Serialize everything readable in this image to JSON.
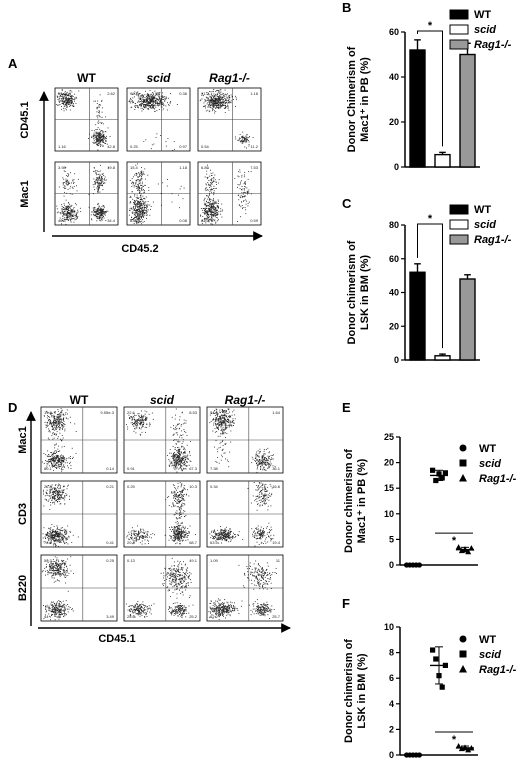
{
  "panels": {
    "A": {
      "letter": "A",
      "columns": [
        {
          "label": "WT",
          "italic": false
        },
        {
          "label": "scid",
          "italic": true
        },
        {
          "label": "Rag1-/-",
          "italic": true
        }
      ],
      "row_labels": [
        "CD45.1",
        "Mac1"
      ],
      "x_label": "CD45.2",
      "quadrants": [
        [
          [
            "63.6",
            "2.62",
            "1.16",
            "42.8"
          ],
          [
            "99.4",
            "0.36",
            "0.25",
            "0.97"
          ],
          [
            "91.2",
            "1.18",
            "0.54",
            "11.2"
          ]
        ],
        [
          [
            "3.98",
            "19.8",
            "40.5",
            "34.4"
          ],
          [
            "15.4",
            "1.18",
            "83.4",
            "0.08"
          ],
          [
            "6.89",
            "7.53",
            "82.6",
            "0.59"
          ]
        ]
      ]
    },
    "D": {
      "letter": "D",
      "columns": [
        {
          "label": "WT",
          "italic": false
        },
        {
          "label": "scid",
          "italic": true
        },
        {
          "label": "Rag1-/-",
          "italic": true
        }
      ],
      "row_labels": [
        "Mac1",
        "CD3",
        "B220"
      ],
      "x_label": "CD45.1",
      "quadrants": [
        [
          [
            "19.8",
            "9.55e-3",
            "80.1",
            "0.14"
          ],
          [
            "22.6",
            "8.53",
            "0.91",
            "67.3"
          ],
          [
            "54.9",
            "1.64",
            "7.38",
            "36.1"
          ]
        ],
        [
          [
            "22.8",
            "0.21",
            "76.5",
            "0.41"
          ],
          [
            "0.25",
            "10.3",
            "20.8",
            "68.7"
          ],
          [
            "0.34",
            "16.6",
            "63.5",
            "19.4"
          ]
        ],
        [
          [
            "50.3",
            "0.25",
            "44",
            "3.49"
          ],
          [
            "0.13",
            "49.1",
            "25.6",
            "25.2"
          ],
          [
            "1.09",
            "11",
            "62.2",
            "25.7"
          ]
        ]
      ]
    }
  },
  "legend": [
    {
      "label": "WT",
      "italic": false
    },
    {
      "label": "scid",
      "italic": true
    },
    {
      "label": "Rag1-/-",
      "italic": true
    }
  ],
  "colors": {
    "wt": "#000000",
    "scid": "#ffffff",
    "rag": "#999999"
  },
  "chart_data": [
    {
      "panel": "B",
      "type": "bar",
      "categories": [
        "WT",
        "scid",
        "Rag1-/-"
      ],
      "values": [
        52,
        5.5,
        50
      ],
      "errors": [
        4.5,
        1,
        5
      ],
      "ylabel_lines": [
        "Donor Chimerism of",
        "Mac1⁺ in PB (%)"
      ],
      "ylim": [
        0,
        60
      ],
      "yticks": [
        "0",
        "20",
        "40",
        "60"
      ],
      "significance": "*"
    },
    {
      "panel": "C",
      "type": "bar",
      "categories": [
        "WT",
        "scid",
        "Rag1-/-"
      ],
      "values": [
        52,
        2.5,
        48
      ],
      "errors": [
        5,
        1,
        2.5
      ],
      "ylabel_lines": [
        "Donor chimerism of",
        "LSK in BM (%)"
      ],
      "ylim": [
        0,
        80
      ],
      "yticks": [
        "0",
        "20",
        "40",
        "60",
        "80"
      ],
      "significance": "*"
    },
    {
      "panel": "E",
      "type": "scatter",
      "categories": [
        "WT",
        "scid",
        "Rag1-/-"
      ],
      "points": [
        [
          0,
          0,
          0,
          0,
          0
        ],
        [
          18.5,
          16.5,
          17.8,
          17,
          18
        ],
        [
          3.5,
          2.8,
          3.1,
          2.6,
          3.3
        ]
      ],
      "means": [
        0,
        17.5,
        3
      ],
      "ylabel_lines": [
        "Donor chimerism of",
        "Mac1⁺ in PB (%)"
      ],
      "ylim": [
        0,
        25
      ],
      "yticks": [
        "0",
        "5",
        "10",
        "15",
        "20",
        "25"
      ],
      "significance": "*"
    },
    {
      "panel": "F",
      "type": "scatter",
      "categories": [
        "WT",
        "scid",
        "Rag1-/-"
      ],
      "points": [
        [
          0,
          0,
          0,
          0,
          0
        ],
        [
          8.2,
          7.5,
          6.2,
          5.3,
          7
        ],
        [
          0.7,
          0.5,
          0.6,
          0.4,
          0.55
        ]
      ],
      "means": [
        0,
        7,
        0.55
      ],
      "ylabel_lines": [
        "Donor chimerism of",
        "LSK in BM (%)"
      ],
      "ylim": [
        0,
        10
      ],
      "yticks": [
        "0",
        "2",
        "4",
        "6",
        "8",
        "10"
      ],
      "significance": "*"
    }
  ]
}
